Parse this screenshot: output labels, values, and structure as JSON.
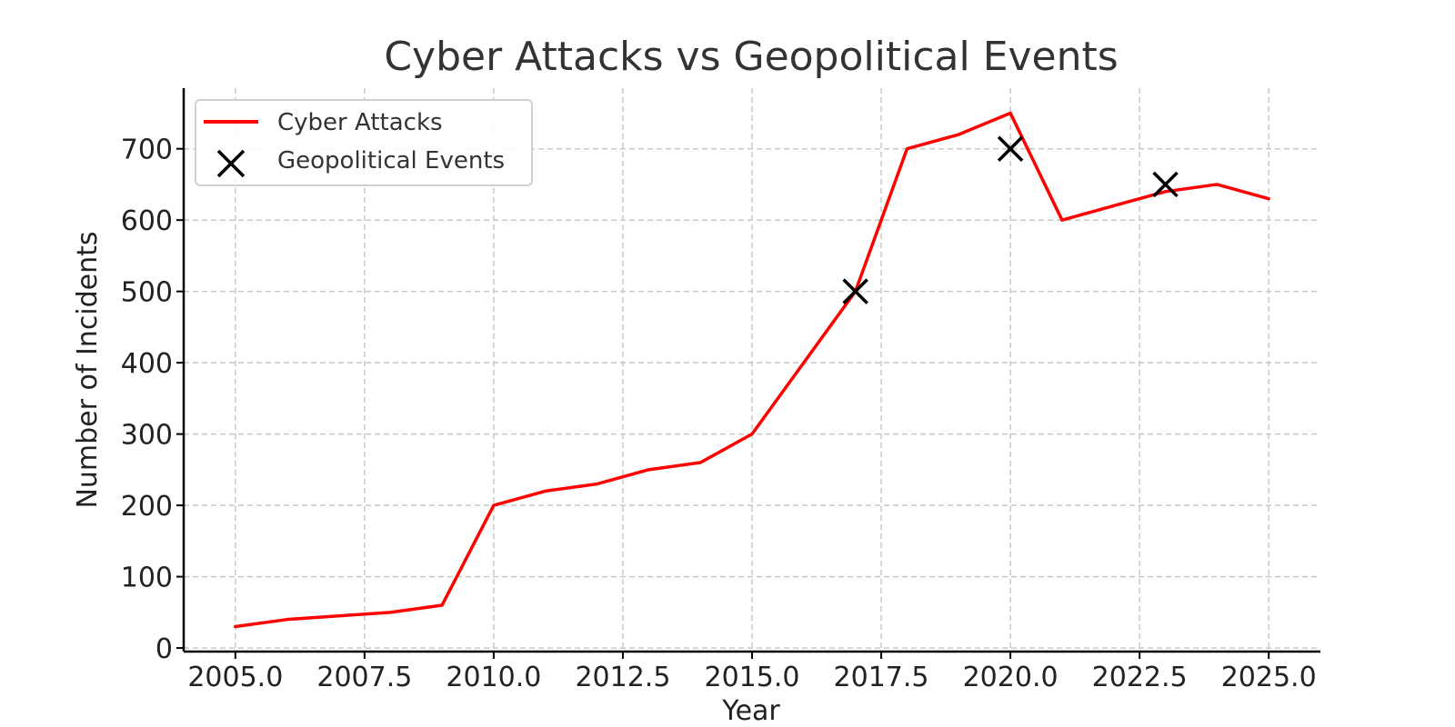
{
  "chart_data": {
    "type": "line",
    "title": "Cyber Attacks vs Geopolitical Events",
    "xlabel": "Year",
    "ylabel": "Number of Incidents",
    "xlim": [
      2004.0,
      2026.0
    ],
    "ylim": [
      -5,
      785
    ],
    "xticks": [
      2005.0,
      2007.5,
      2010.0,
      2012.5,
      2015.0,
      2017.5,
      2020.0,
      2022.5,
      2025.0
    ],
    "xtick_labels": [
      "2005.0",
      "2007.5",
      "2010.0",
      "2012.5",
      "2015.0",
      "2017.5",
      "2020.0",
      "2022.5",
      "2025.0"
    ],
    "yticks": [
      0,
      100,
      200,
      300,
      400,
      500,
      600,
      700
    ],
    "ytick_labels": [
      "0",
      "100",
      "200",
      "300",
      "400",
      "500",
      "600",
      "700"
    ],
    "grid": true,
    "legend_position": "top-left",
    "series": [
      {
        "name": "Cyber Attacks",
        "kind": "line",
        "color": "#ff0000",
        "x": [
          2005,
          2006,
          2007,
          2008,
          2009,
          2010,
          2011,
          2012,
          2013,
          2014,
          2015,
          2016,
          2017,
          2018,
          2019,
          2020,
          2021,
          2022,
          2023,
          2024,
          2025
        ],
        "y": [
          30,
          40,
          45,
          50,
          60,
          200,
          220,
          230,
          250,
          260,
          300,
          400,
          500,
          700,
          720,
          750,
          600,
          620,
          640,
          650,
          630
        ]
      },
      {
        "name": "Geopolitical Events",
        "kind": "scatter",
        "marker": "x",
        "color": "#000000",
        "x": [
          2017,
          2020,
          2023
        ],
        "y": [
          500,
          700,
          650
        ]
      }
    ]
  }
}
